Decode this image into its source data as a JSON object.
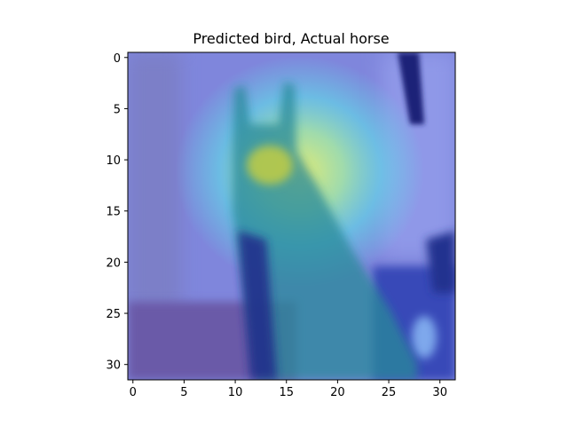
{
  "chart_data": {
    "type": "heatmap",
    "title": "Predicted bird, Actual horse",
    "xlabel": "",
    "ylabel": "",
    "xlim": [
      -0.5,
      31.5
    ],
    "ylim": [
      31.5,
      -0.5
    ],
    "x_ticks": [
      0,
      5,
      10,
      15,
      20,
      25,
      30
    ],
    "y_ticks": [
      0,
      5,
      10,
      15,
      20,
      25,
      30
    ],
    "grid": false,
    "colormap": "jet overlay on input image",
    "heat_peak": {
      "x": 17,
      "y": 12
    }
  },
  "colors": {
    "background": "#7f86dc",
    "heat_low": "#2a2fb0",
    "heat_mid": "#5fe0e8",
    "heat_high": "#e8f070"
  }
}
